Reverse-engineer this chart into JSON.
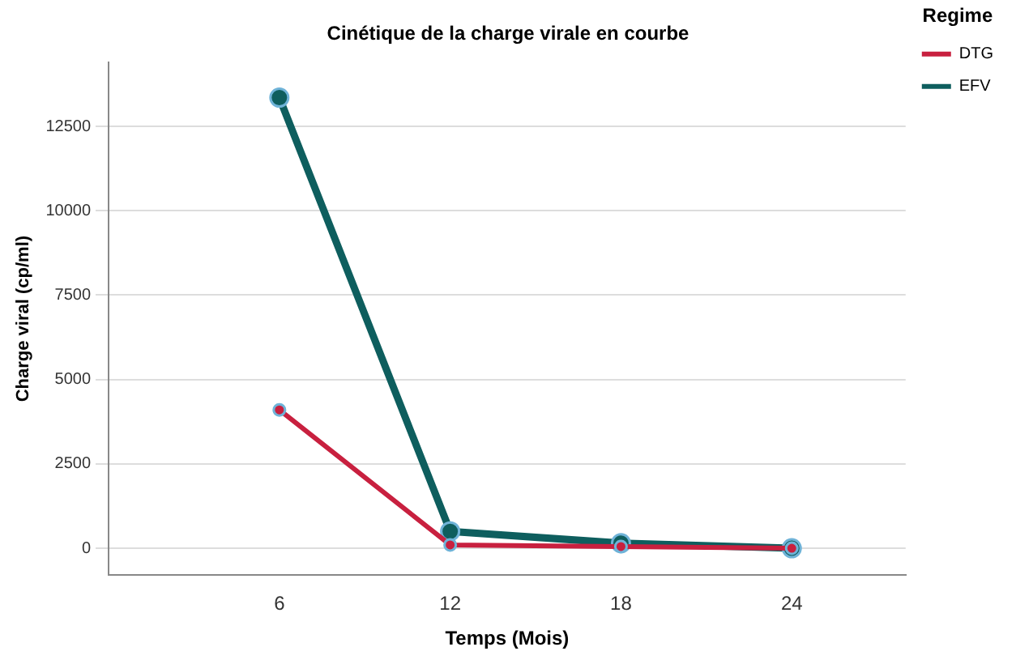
{
  "chart_data": {
    "type": "line",
    "title": "Cinétique de la charge virale en courbe",
    "xlabel": "Temps (Mois)",
    "ylabel": "Charge viral (cp/ml)",
    "legend_title": "Regime",
    "x": [
      6,
      12,
      18,
      24
    ],
    "xlim": [
      0,
      28
    ],
    "xticks": [
      6,
      12,
      18,
      24
    ],
    "ylim": [
      -800,
      14400
    ],
    "yticks": [
      0,
      2500,
      5000,
      7500,
      10000,
      12500
    ],
    "series": [
      {
        "name": "DTG",
        "color": "#c8203f",
        "values": [
          4100,
          100,
          50,
          0
        ]
      },
      {
        "name": "EFV",
        "color": "#0e5e5e",
        "values": [
          13350,
          500,
          150,
          0
        ]
      }
    ],
    "grid": "y",
    "legend": "top right",
    "marker": "circle",
    "line_style": "solid"
  }
}
